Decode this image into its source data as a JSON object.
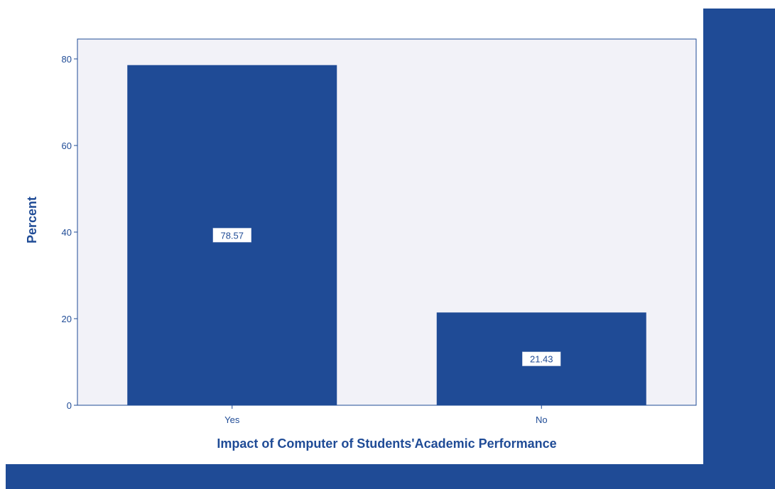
{
  "chart_data": {
    "type": "bar",
    "title": "",
    "xlabel": "Impact of Computer of Students'Academic Performance",
    "ylabel": "Percent",
    "categories": [
      "Yes",
      "No"
    ],
    "values": [
      78.57,
      21.43
    ],
    "data_labels": [
      "78.57",
      "21.43"
    ],
    "ylim": [
      0,
      80
    ],
    "yticks": [
      0,
      20,
      40,
      60,
      80
    ],
    "ytick_labels": [
      "0",
      "20",
      "40",
      "60",
      "80"
    ],
    "grid": false,
    "legend": "none"
  },
  "colors": {
    "bar": "#1f4b96",
    "plot_background": "#f2f2f8",
    "axis": "#1f4b96",
    "text": "#1f4b96",
    "band": "#1f4b96",
    "label_box": "#ffffff",
    "label_text": "#1f4b96"
  }
}
